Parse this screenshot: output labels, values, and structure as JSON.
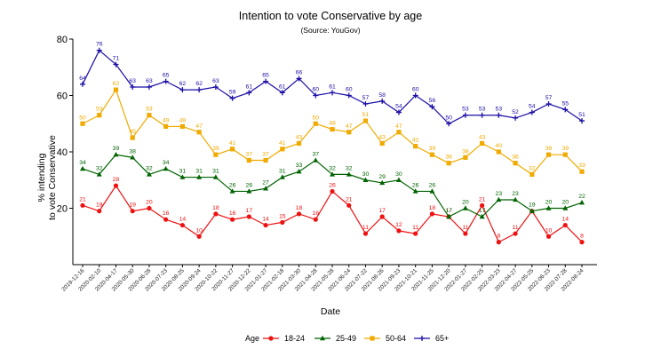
{
  "chart_data": {
    "type": "line",
    "title": "Intention to vote Conservative by age",
    "subtitle": "(Source: YouGov)",
    "xlabel": "Date",
    "ylabel": "% intending to vote Conservative",
    "ylabel_lines": [
      "% intending",
      "to vote Conservative"
    ],
    "ylim": [
      0,
      80
    ],
    "yticks": [
      20,
      40,
      60,
      80
    ],
    "legend_title": "Age",
    "legend_position": "bottom",
    "grid": false,
    "categories": [
      "2019-12-16",
      "2020-02-10",
      "2020-04-17",
      "2020-05-30",
      "2020-06-28",
      "2020-07-23",
      "2020-08-25",
      "2020-09-24",
      "2020-10-22",
      "2020-11-27",
      "2020-12-22",
      "2021-01-27",
      "2021-02-18",
      "2021-03-30",
      "2021-04-28",
      "2021-05-28",
      "2021-06-24",
      "2021-07-22",
      "2021-08-26",
      "2021-09-23",
      "2021-10-21",
      "2021-11-25",
      "2021-12-20",
      "2022-01-27",
      "2022-02-25",
      "2022-03-23",
      "2022-04-27",
      "2022-05-25",
      "2022-06-23",
      "2022-07-28",
      "2022-08-24"
    ],
    "x_tick_labels": [
      "2019-12-16",
      "2020-02-10",
      "2020-04-17",
      "2020-05-30",
      "2020-06-28",
      "2020-07-23",
      "2020-08-25",
      "2020-09-24",
      "2020-10-22",
      "2020-11-27",
      "2020-12-22",
      "2021-01-27",
      "2021-02-18",
      "2021-03-30",
      "2021-04-28",
      "2021-05-28",
      "2021-06-24",
      "2021-07-22",
      "2021-08-26",
      "2021-09-23",
      "2021-10-21",
      "2021-11-25",
      "2021-12-20",
      "2022-01-27",
      "2022-02-25",
      "2022-03-23",
      "2022-04-27",
      "2022-05-25",
      "2022-06-23",
      "2022-07-28",
      "2022-08-24"
    ],
    "series": [
      {
        "name": "18-24",
        "color": "#ee1111",
        "marker": "circle",
        "values": [
          21,
          19,
          28,
          19,
          20,
          16,
          14,
          10,
          18,
          16,
          17,
          14,
          15,
          18,
          16,
          26,
          21,
          11,
          17,
          12,
          11,
          18,
          17,
          11,
          21,
          8,
          11,
          19,
          10,
          14,
          8
        ],
        "labels": [
          "21",
          "19",
          "28",
          "19",
          "20",
          "16",
          "14",
          "10",
          "18",
          "16",
          "17",
          "14",
          "15",
          "18",
          "16",
          "26",
          "21",
          "11",
          "17",
          "12",
          "11",
          "18",
          "17",
          "11",
          "21",
          "8",
          "11",
          "",
          "10",
          "14",
          "8"
        ]
      },
      {
        "name": "25-49",
        "color": "#006400",
        "marker": "triangle",
        "values": [
          34,
          32,
          39,
          38,
          32,
          34,
          31,
          31,
          31,
          26,
          26,
          27,
          31,
          33,
          37,
          32,
          32,
          30,
          29,
          30,
          26,
          26,
          17,
          20,
          17,
          23,
          23,
          19,
          20,
          20,
          22
        ],
        "labels": [
          "34",
          "32",
          "39",
          "38",
          "32",
          "34",
          "31",
          "31",
          "31",
          "26",
          "26",
          "27",
          "31",
          "33",
          "37",
          "32",
          "32",
          "30",
          "29",
          "30",
          "26",
          "26",
          "17",
          "20",
          "17",
          "23",
          "23",
          "19",
          "20",
          "20",
          "22"
        ]
      },
      {
        "name": "50-64",
        "color": "#f0aa00",
        "marker": "square",
        "values": [
          50,
          53,
          62,
          45,
          53,
          49,
          49,
          47,
          39,
          41,
          37,
          37,
          41,
          43,
          50,
          48,
          47,
          51,
          43,
          47,
          42,
          39,
          36,
          38,
          43,
          40,
          36,
          32,
          39,
          39,
          33
        ],
        "labels": [
          "50",
          "53",
          "62",
          "45",
          "53",
          "49",
          "49",
          "47",
          "39",
          "41",
          "37",
          "37",
          "41",
          "43",
          "50",
          "48",
          "47",
          "51",
          "43",
          "47",
          "42",
          "39",
          "36",
          "38",
          "43",
          "40",
          "36",
          "32",
          "39",
          "39",
          "33"
        ]
      },
      {
        "name": "65+",
        "color": "#1a0da6",
        "marker": "plus",
        "values": [
          64,
          76,
          71,
          63,
          63,
          65,
          62,
          62,
          63,
          59,
          61,
          65,
          61,
          66,
          60,
          61,
          60,
          57,
          58,
          54,
          60,
          56,
          50,
          53,
          53,
          53,
          52,
          54,
          57,
          55,
          51
        ],
        "labels": [
          "64",
          "76",
          "71",
          "63",
          "63",
          "65",
          "62",
          "62",
          "63",
          "59",
          "61",
          "65",
          "61",
          "66",
          "60",
          "61",
          "60",
          "57",
          "58",
          "54",
          "60",
          "56",
          "50",
          "53",
          "53",
          "53",
          "52",
          "54",
          "57",
          "55",
          "51"
        ]
      }
    ]
  }
}
